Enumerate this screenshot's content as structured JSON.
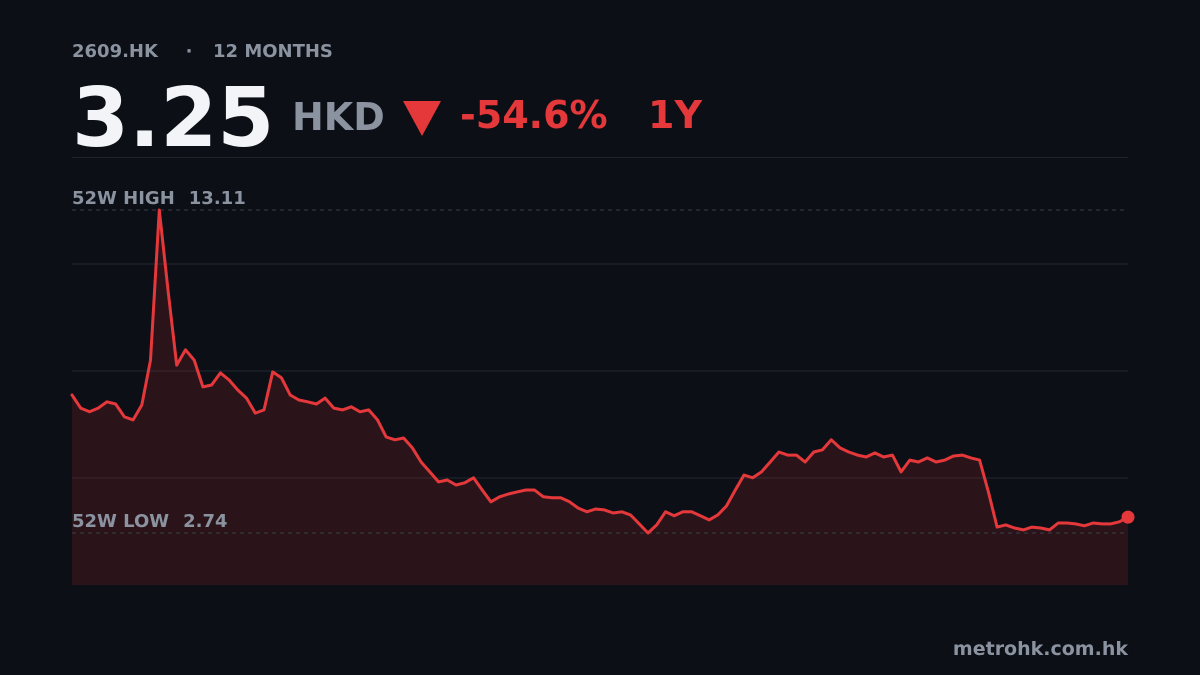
{
  "header": {
    "ticker": "2609.HK",
    "separator": "·",
    "period_label": "12 MONTHS",
    "price": "3.25",
    "currency": "HKD",
    "change": "-54.6%",
    "change_period": "1Y"
  },
  "chart_data": {
    "type": "line",
    "color": "#e5383b",
    "ylim": [
      1.07,
      14.81
    ],
    "high": {
      "label": "52W HIGH",
      "value": 13.11
    },
    "low": {
      "label": "52W LOW",
      "value": 2.74
    },
    "values": [
      7.17,
      6.75,
      6.63,
      6.75,
      6.95,
      6.88,
      6.47,
      6.37,
      6.85,
      8.29,
      13.11,
      10.54,
      8.13,
      8.62,
      8.29,
      7.43,
      7.49,
      7.88,
      7.65,
      7.33,
      7.07,
      6.59,
      6.69,
      7.91,
      7.72,
      7.17,
      7.01,
      6.95,
      6.88,
      7.07,
      6.75,
      6.69,
      6.79,
      6.63,
      6.69,
      6.37,
      5.82,
      5.73,
      5.79,
      5.47,
      5.02,
      4.7,
      4.38,
      4.44,
      4.28,
      4.35,
      4.51,
      4.12,
      3.74,
      3.9,
      3.99,
      4.06,
      4.12,
      4.12,
      3.9,
      3.87,
      3.87,
      3.74,
      3.54,
      3.42,
      3.51,
      3.48,
      3.38,
      3.42,
      3.32,
      3.03,
      2.74,
      3.0,
      3.42,
      3.29,
      3.42,
      3.42,
      3.29,
      3.16,
      3.32,
      3.61,
      4.12,
      4.6,
      4.51,
      4.7,
      5.02,
      5.34,
      5.24,
      5.24,
      5.02,
      5.34,
      5.41,
      5.73,
      5.47,
      5.34,
      5.24,
      5.18,
      5.31,
      5.18,
      5.24,
      4.7,
      5.08,
      5.02,
      5.15,
      5.02,
      5.08,
      5.21,
      5.24,
      5.15,
      5.08,
      4.06,
      2.93,
      3.0,
      2.9,
      2.84,
      2.93,
      2.9,
      2.84,
      3.06,
      3.06,
      3.03,
      2.97,
      3.06,
      3.03,
      3.03,
      3.1,
      3.25
    ]
  },
  "footer": {
    "source": "metrohk.com.hk"
  }
}
